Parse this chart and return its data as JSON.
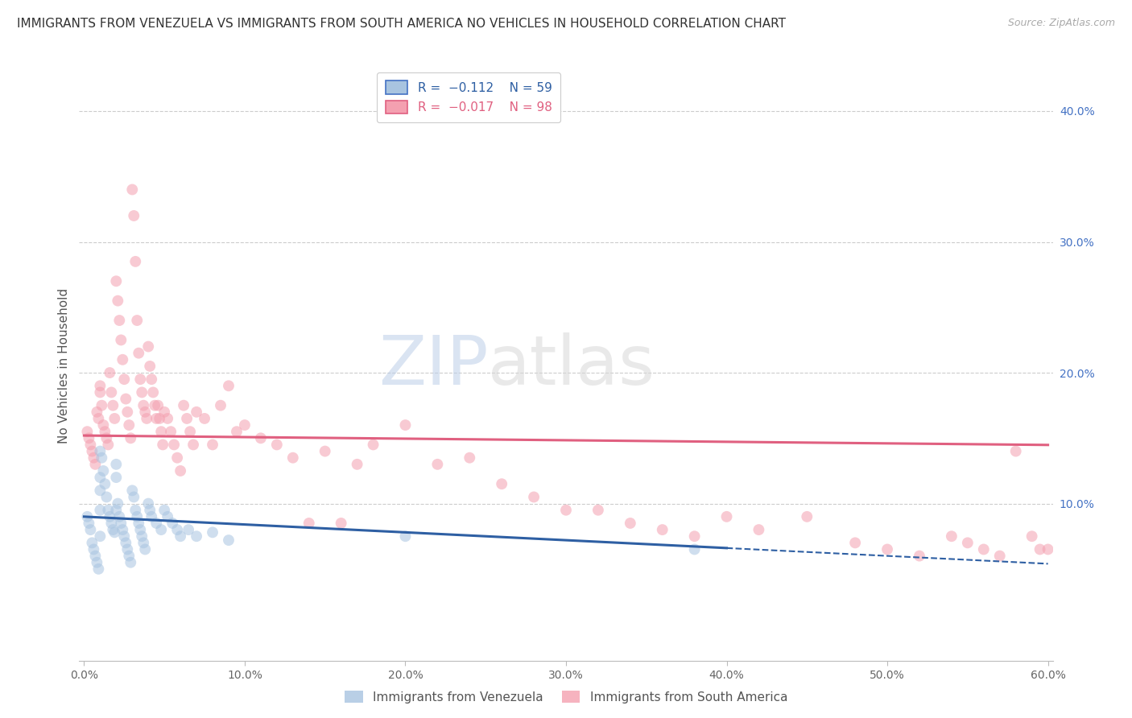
{
  "title": "IMMIGRANTS FROM VENEZUELA VS IMMIGRANTS FROM SOUTH AMERICA NO VEHICLES IN HOUSEHOLD CORRELATION CHART",
  "source": "Source: ZipAtlas.com",
  "ylabel": "No Vehicles in Household",
  "xlim": [
    -0.003,
    0.603
  ],
  "ylim": [
    -0.02,
    0.43
  ],
  "xticks": [
    0.0,
    0.1,
    0.2,
    0.3,
    0.4,
    0.5,
    0.6
  ],
  "xticklabels": [
    "0.0%",
    "10.0%",
    "20.0%",
    "30.0%",
    "40.0%",
    "50.0%",
    "60.0%"
  ],
  "yticks_right": [
    0.1,
    0.2,
    0.3,
    0.4
  ],
  "ytick_labels_right": [
    "10.0%",
    "20.0%",
    "30.0%",
    "40.0%"
  ],
  "right_axis_color": "#4472c4",
  "watermark_zip": "ZIP",
  "watermark_atlas": "atlas",
  "series1_color": "#a8c4e0",
  "series2_color": "#f4a0b0",
  "trendline1_color": "#2e5fa3",
  "trendline2_color": "#e06080",
  "grid_color": "#cccccc",
  "background": "#ffffff",
  "venezuela_x": [
    0.002,
    0.003,
    0.004,
    0.005,
    0.006,
    0.007,
    0.008,
    0.009,
    0.01,
    0.01,
    0.01,
    0.01,
    0.01,
    0.011,
    0.012,
    0.013,
    0.014,
    0.015,
    0.016,
    0.017,
    0.018,
    0.019,
    0.02,
    0.02,
    0.02,
    0.021,
    0.022,
    0.023,
    0.024,
    0.025,
    0.026,
    0.027,
    0.028,
    0.029,
    0.03,
    0.031,
    0.032,
    0.033,
    0.034,
    0.035,
    0.036,
    0.037,
    0.038,
    0.04,
    0.041,
    0.042,
    0.045,
    0.048,
    0.05,
    0.052,
    0.055,
    0.058,
    0.06,
    0.065,
    0.07,
    0.08,
    0.09,
    0.2,
    0.38
  ],
  "venezuela_y": [
    0.09,
    0.085,
    0.08,
    0.07,
    0.065,
    0.06,
    0.055,
    0.05,
    0.14,
    0.12,
    0.11,
    0.095,
    0.075,
    0.135,
    0.125,
    0.115,
    0.105,
    0.095,
    0.09,
    0.085,
    0.08,
    0.078,
    0.13,
    0.12,
    0.095,
    0.1,
    0.09,
    0.085,
    0.08,
    0.075,
    0.07,
    0.065,
    0.06,
    0.055,
    0.11,
    0.105,
    0.095,
    0.09,
    0.085,
    0.08,
    0.075,
    0.07,
    0.065,
    0.1,
    0.095,
    0.09,
    0.085,
    0.08,
    0.095,
    0.09,
    0.085,
    0.08,
    0.075,
    0.08,
    0.075,
    0.078,
    0.072,
    0.075,
    0.065
  ],
  "southam_x": [
    0.002,
    0.003,
    0.004,
    0.005,
    0.006,
    0.007,
    0.008,
    0.009,
    0.01,
    0.01,
    0.011,
    0.012,
    0.013,
    0.014,
    0.015,
    0.016,
    0.017,
    0.018,
    0.019,
    0.02,
    0.021,
    0.022,
    0.023,
    0.024,
    0.025,
    0.026,
    0.027,
    0.028,
    0.029,
    0.03,
    0.031,
    0.032,
    0.033,
    0.034,
    0.035,
    0.036,
    0.037,
    0.038,
    0.039,
    0.04,
    0.041,
    0.042,
    0.043,
    0.044,
    0.045,
    0.046,
    0.047,
    0.048,
    0.049,
    0.05,
    0.052,
    0.054,
    0.056,
    0.058,
    0.06,
    0.062,
    0.064,
    0.066,
    0.068,
    0.07,
    0.075,
    0.08,
    0.085,
    0.09,
    0.095,
    0.1,
    0.11,
    0.12,
    0.13,
    0.14,
    0.15,
    0.16,
    0.17,
    0.18,
    0.2,
    0.22,
    0.24,
    0.26,
    0.28,
    0.3,
    0.32,
    0.34,
    0.36,
    0.38,
    0.4,
    0.42,
    0.45,
    0.48,
    0.5,
    0.52,
    0.54,
    0.55,
    0.56,
    0.57,
    0.58,
    0.59,
    0.595,
    0.6
  ],
  "southam_y": [
    0.155,
    0.15,
    0.145,
    0.14,
    0.135,
    0.13,
    0.17,
    0.165,
    0.19,
    0.185,
    0.175,
    0.16,
    0.155,
    0.15,
    0.145,
    0.2,
    0.185,
    0.175,
    0.165,
    0.27,
    0.255,
    0.24,
    0.225,
    0.21,
    0.195,
    0.18,
    0.17,
    0.16,
    0.15,
    0.34,
    0.32,
    0.285,
    0.24,
    0.215,
    0.195,
    0.185,
    0.175,
    0.17,
    0.165,
    0.22,
    0.205,
    0.195,
    0.185,
    0.175,
    0.165,
    0.175,
    0.165,
    0.155,
    0.145,
    0.17,
    0.165,
    0.155,
    0.145,
    0.135,
    0.125,
    0.175,
    0.165,
    0.155,
    0.145,
    0.17,
    0.165,
    0.145,
    0.175,
    0.19,
    0.155,
    0.16,
    0.15,
    0.145,
    0.135,
    0.085,
    0.14,
    0.085,
    0.13,
    0.145,
    0.16,
    0.13,
    0.135,
    0.115,
    0.105,
    0.095,
    0.095,
    0.085,
    0.08,
    0.075,
    0.09,
    0.08,
    0.09,
    0.07,
    0.065,
    0.06,
    0.075,
    0.07,
    0.065,
    0.06,
    0.14,
    0.075,
    0.065,
    0.065
  ],
  "title_fontsize": 11,
  "axis_label_fontsize": 11,
  "tick_fontsize": 10,
  "marker_size": 100,
  "marker_alpha": 0.55,
  "trendline_solid_end_v": 0.4,
  "trendline_ext_end_v": 0.6
}
